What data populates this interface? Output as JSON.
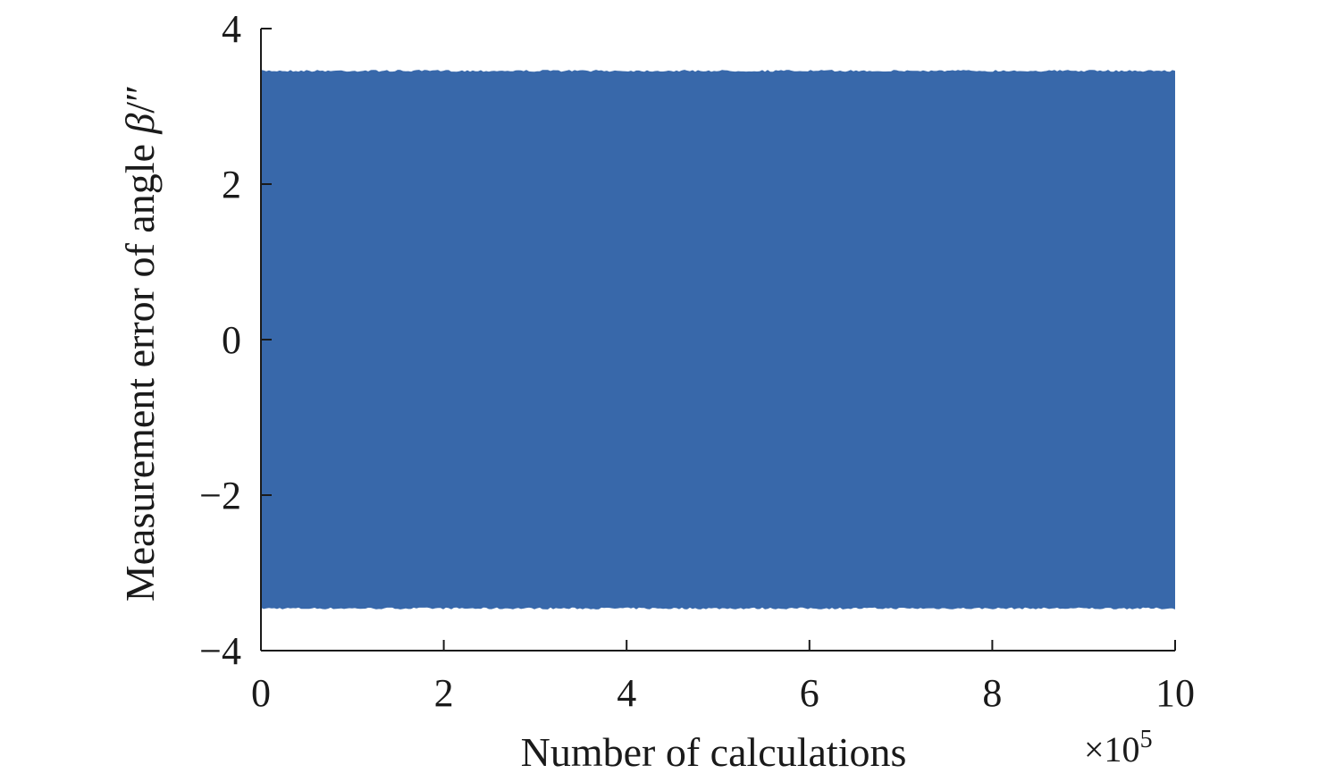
{
  "chart_data": {
    "type": "area",
    "title": "",
    "xlabel": "Number of calculations",
    "ylabel_prefix": "Measurement error of angle ",
    "ylabel_symbol": "β",
    "ylabel_suffix": "/″",
    "x_multiplier_base": "×10",
    "x_multiplier_exp": "5",
    "xlim": [
      0,
      10
    ],
    "ylim": [
      -4,
      4
    ],
    "xticks": [
      0,
      2,
      4,
      6,
      8,
      10
    ],
    "yticks": [
      -4,
      -2,
      0,
      2,
      4
    ],
    "xtick_labels": [
      "0",
      "2",
      "4",
      "6",
      "8",
      "10"
    ],
    "ytick_labels": [
      "−4",
      "−2",
      "0",
      "2",
      "4"
    ],
    "grid": false,
    "series": [
      {
        "x_range": [
          0,
          10
        ],
        "upper": 3.47,
        "lower": -3.47,
        "color": "#3868aa",
        "description": "dense random error samples filling band between upper and lower bounds"
      }
    ]
  }
}
